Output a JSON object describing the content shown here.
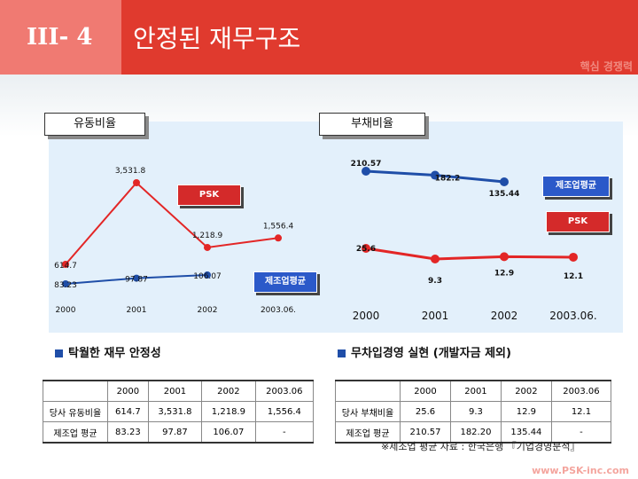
{
  "header": {
    "section_number": "III- 4",
    "title": "안정된 재무구조",
    "subtitle": "핵심 경쟁력"
  },
  "tabs": {
    "left": "유동비율",
    "right": "부채비율"
  },
  "chart_data": [
    {
      "type": "line",
      "title": "유동비율",
      "categories": [
        "2000",
        "2001",
        "2002",
        "2003.06."
      ],
      "series": [
        {
          "name": "PSK",
          "values": [
            614.7,
            3531.8,
            1218.9,
            1556.4
          ],
          "labels": [
            "614.7",
            "3,531.8",
            "1,218.9",
            "1,556.4"
          ]
        },
        {
          "name": "제조업평균",
          "values": [
            83.23,
            97.87,
            106.07,
            null
          ],
          "labels": [
            "83.23",
            "97.87",
            "106.07",
            ""
          ]
        }
      ],
      "colors": {
        "PSK": "#e32626",
        "제조업평균": "#1f4ea8"
      }
    },
    {
      "type": "line",
      "title": "부채비율",
      "categories": [
        "2000",
        "2001",
        "2002",
        "2003.06."
      ],
      "series": [
        {
          "name": "제조업평균",
          "values": [
            210.57,
            182.2,
            135.44,
            null
          ],
          "labels": [
            "210.57",
            "182.2",
            "135.44",
            ""
          ]
        },
        {
          "name": "PSK",
          "values": [
            25.6,
            9.3,
            12.9,
            12.1
          ],
          "labels": [
            "25.6",
            "9.3",
            "12.9",
            "12.1"
          ]
        }
      ],
      "colors": {
        "PSK": "#e32626",
        "제조업평균": "#1f4ea8"
      }
    }
  ],
  "callouts": {
    "left_psk": "PSK",
    "left_avg": "제조업평균",
    "right_avg": "제조업평균",
    "right_psk": "PSK"
  },
  "sections": {
    "left": "탁월한 재무 안정성",
    "right": "무차입경영 실현 (개발자금 제외)"
  },
  "table_left": {
    "headers": [
      "",
      "2000",
      "2001",
      "2002",
      "2003.06"
    ],
    "rows": [
      [
        "당사 유동비율",
        "614.7",
        "3,531.8",
        "1,218.9",
        "1,556.4"
      ],
      [
        "제조업 평균",
        "83.23",
        "97.87",
        "106.07",
        "-"
      ]
    ]
  },
  "table_right": {
    "headers": [
      "",
      "2000",
      "2001",
      "2002",
      "2003.06"
    ],
    "rows": [
      [
        "당사 부채비율",
        "25.6",
        "9.3",
        "12.9",
        "12.1"
      ],
      [
        "제조업 평균",
        "210.57",
        "182.20",
        "135.44",
        "-"
      ]
    ]
  },
  "note": "※제조업 평균 자료 : 한국은행 『기업경영분석』",
  "footer": "www.PSK-inc.com"
}
